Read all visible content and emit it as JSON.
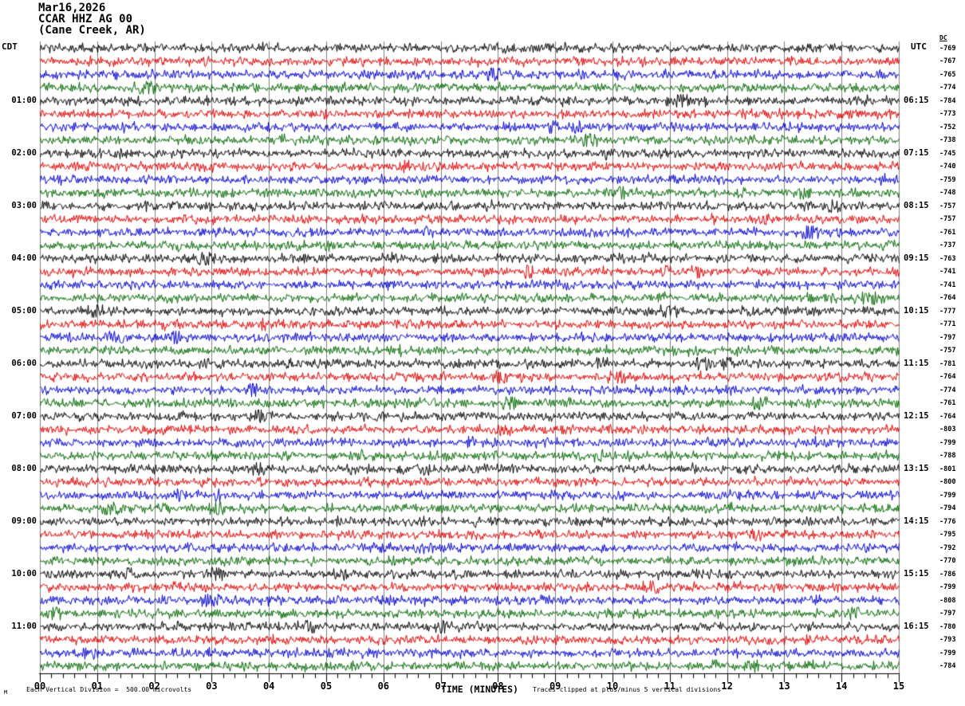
{
  "header": {
    "date_line": "Mar16,2026",
    "station_line": "CCAR HHZ AG 00",
    "location_line": "(Cane Creek, AR)"
  },
  "axis": {
    "left_timezone": "CDT",
    "right_timezone": "UTC",
    "dc_header": "DC",
    "x_title": "TIME (MINUTES)",
    "x_tick_labels": [
      "00",
      "01",
      "02",
      "03",
      "04",
      "05",
      "06",
      "07",
      "08",
      "09",
      "10",
      "11",
      "12",
      "13",
      "14",
      "15"
    ]
  },
  "footer": {
    "scale_note": "Each Vertical Division =  500.00 microvolts",
    "clip_note": "Traces clipped at plus/minus 5 vertical divisions",
    "corner_mark": "M"
  },
  "colors": {
    "background": "#ffffff",
    "text": "#000000",
    "grid": "#808080",
    "axis": "#000000",
    "palette": {
      "black": "#000000",
      "red": "#dd0000",
      "blue": "#0000cc",
      "green": "#006600"
    }
  },
  "chart_data": {
    "type": "line",
    "subtype": "helicorder_seismogram",
    "title": "Mar16,2026 CCAR HHZ AG 00 (Cane Creek, AR)",
    "xlabel": "TIME (MINUTES)",
    "x_range_minutes": [
      0,
      15
    ],
    "x_major_tick_minutes": 1,
    "x_minor_tick_minutes": 0.2,
    "minutes_per_row": 15,
    "rows_total": 48,
    "grid": "vertical gray line at every minute",
    "microvolts_per_division": 500,
    "clip_divisions": 5,
    "trace_color_cycle": [
      "black",
      "red",
      "blue",
      "green"
    ],
    "rows": [
      {
        "local": "",
        "utc": "",
        "dc": -769,
        "color": "black"
      },
      {
        "local": "",
        "utc": "",
        "dc": -767,
        "color": "red"
      },
      {
        "local": "",
        "utc": "",
        "dc": -765,
        "color": "blue"
      },
      {
        "local": "",
        "utc": "",
        "dc": -774,
        "color": "green"
      },
      {
        "local": "01:00",
        "utc": "06:15",
        "dc": -784,
        "color": "black"
      },
      {
        "local": "",
        "utc": "",
        "dc": -773,
        "color": "red"
      },
      {
        "local": "",
        "utc": "",
        "dc": -752,
        "color": "blue"
      },
      {
        "local": "",
        "utc": "",
        "dc": -738,
        "color": "green"
      },
      {
        "local": "02:00",
        "utc": "07:15",
        "dc": -745,
        "color": "black"
      },
      {
        "local": "",
        "utc": "",
        "dc": -740,
        "color": "red"
      },
      {
        "local": "",
        "utc": "",
        "dc": -759,
        "color": "blue"
      },
      {
        "local": "",
        "utc": "",
        "dc": -748,
        "color": "green"
      },
      {
        "local": "03:00",
        "utc": "08:15",
        "dc": -757,
        "color": "black"
      },
      {
        "local": "",
        "utc": "",
        "dc": -757,
        "color": "red"
      },
      {
        "local": "",
        "utc": "",
        "dc": -761,
        "color": "blue"
      },
      {
        "local": "",
        "utc": "",
        "dc": -737,
        "color": "green"
      },
      {
        "local": "04:00",
        "utc": "09:15",
        "dc": -763,
        "color": "black"
      },
      {
        "local": "",
        "utc": "",
        "dc": -741,
        "color": "red"
      },
      {
        "local": "",
        "utc": "",
        "dc": -741,
        "color": "blue"
      },
      {
        "local": "",
        "utc": "",
        "dc": -764,
        "color": "green"
      },
      {
        "local": "05:00",
        "utc": "10:15",
        "dc": -777,
        "color": "black"
      },
      {
        "local": "",
        "utc": "",
        "dc": -771,
        "color": "red"
      },
      {
        "local": "",
        "utc": "",
        "dc": -797,
        "color": "blue"
      },
      {
        "local": "",
        "utc": "",
        "dc": -757,
        "color": "green"
      },
      {
        "local": "06:00",
        "utc": "11:15",
        "dc": -781,
        "color": "black"
      },
      {
        "local": "",
        "utc": "",
        "dc": -764,
        "color": "red"
      },
      {
        "local": "",
        "utc": "",
        "dc": -774,
        "color": "blue"
      },
      {
        "local": "",
        "utc": "",
        "dc": -761,
        "color": "green"
      },
      {
        "local": "07:00",
        "utc": "12:15",
        "dc": -764,
        "color": "black"
      },
      {
        "local": "",
        "utc": "",
        "dc": -803,
        "color": "red"
      },
      {
        "local": "",
        "utc": "",
        "dc": -799,
        "color": "blue"
      },
      {
        "local": "",
        "utc": "",
        "dc": -788,
        "color": "green"
      },
      {
        "local": "08:00",
        "utc": "13:15",
        "dc": -801,
        "color": "black"
      },
      {
        "local": "",
        "utc": "",
        "dc": -800,
        "color": "red"
      },
      {
        "local": "",
        "utc": "",
        "dc": -799,
        "color": "blue"
      },
      {
        "local": "",
        "utc": "",
        "dc": -794,
        "color": "green"
      },
      {
        "local": "09:00",
        "utc": "14:15",
        "dc": -776,
        "color": "black"
      },
      {
        "local": "",
        "utc": "",
        "dc": -795,
        "color": "red"
      },
      {
        "local": "",
        "utc": "",
        "dc": -792,
        "color": "blue"
      },
      {
        "local": "",
        "utc": "",
        "dc": -770,
        "color": "green"
      },
      {
        "local": "10:00",
        "utc": "15:15",
        "dc": -786,
        "color": "black"
      },
      {
        "local": "",
        "utc": "",
        "dc": -799,
        "color": "red"
      },
      {
        "local": "",
        "utc": "",
        "dc": -808,
        "color": "blue"
      },
      {
        "local": "",
        "utc": "",
        "dc": -797,
        "color": "green"
      },
      {
        "local": "11:00",
        "utc": "16:15",
        "dc": -780,
        "color": "black"
      },
      {
        "local": "",
        "utc": "",
        "dc": -793,
        "color": "red"
      },
      {
        "local": "",
        "utc": "",
        "dc": -799,
        "color": "blue"
      },
      {
        "local": "",
        "utc": "",
        "dc": -784,
        "color": "green"
      }
    ],
    "events": [
      {
        "row_index": 44,
        "minute": 7.0,
        "note": "small amplitude burst on 11:00 CDT trace"
      }
    ]
  }
}
